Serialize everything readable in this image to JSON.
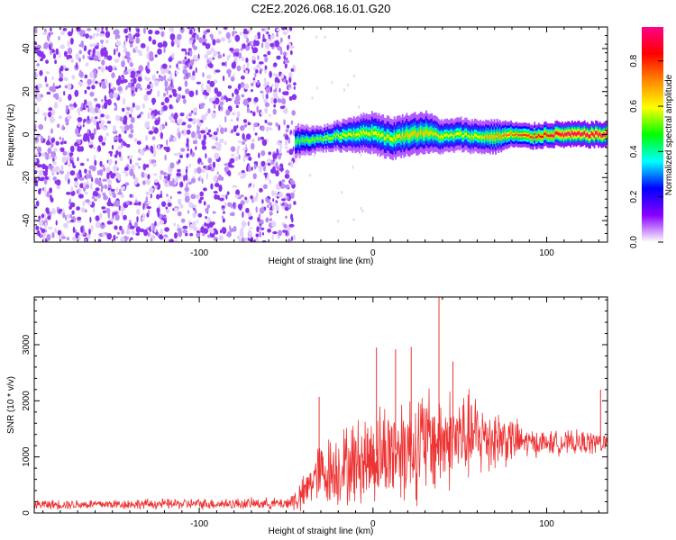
{
  "title": "C2E2.2026.068.16.01.G20",
  "chart_data": [
    {
      "type": "heatmap",
      "title": "C2E2.2026.068.16.01.G20",
      "xlabel": "Height of straight line (km)",
      "ylabel": "Frequency (Hz)",
      "xlim": [
        -195,
        135
      ],
      "ylim": [
        -50,
        50
      ],
      "xticks": [
        -100,
        0,
        100
      ],
      "yticks": [
        -40,
        -20,
        0,
        20,
        40
      ],
      "colorbar": {
        "label": "Normalized spectral amplitude",
        "range": [
          0.0,
          0.95
        ],
        "ticks": [
          0.0,
          0.2,
          0.4,
          0.6,
          0.8
        ],
        "tick_labels": [
          "0.0",
          "0.2",
          "0.4",
          "0.6",
          "0.8"
        ],
        "colors": [
          "#ffffff",
          "#8800ff",
          "#0000ff",
          "#00ffff",
          "#00ff00",
          "#ffff00",
          "#ff8800",
          "#ff0000",
          "#ff0088"
        ]
      },
      "noise_region": {
        "x_range": [
          -195,
          -45
        ],
        "freq_range": [
          -50,
          50
        ],
        "amplitude": 0.1
      },
      "signal_trace": {
        "description": "Narrow band near 0 Hz",
        "x": [
          -45,
          -30,
          -15,
          0,
          10,
          20,
          30,
          40,
          50,
          60,
          70,
          80,
          90,
          100,
          110,
          120,
          135
        ],
        "freq": [
          -3,
          -2,
          0,
          1,
          -2,
          0,
          1,
          -1,
          0,
          -1,
          -1,
          0,
          -1,
          0,
          0,
          0,
          0
        ],
        "half_width": [
          4,
          3,
          4,
          5,
          5,
          5,
          5,
          4,
          4,
          4,
          4,
          3,
          3,
          3,
          3,
          3,
          3
        ],
        "peak_amplitude": [
          0.5,
          0.55,
          0.6,
          0.6,
          0.6,
          0.65,
          0.65,
          0.6,
          0.6,
          0.6,
          0.7,
          0.75,
          0.8,
          0.85,
          0.95,
          0.95,
          0.95
        ]
      }
    },
    {
      "type": "line",
      "xlabel": "Height of straight line (km)",
      "ylabel": "SNR (10 * v/v)",
      "xlim": [
        -195,
        135
      ],
      "ylim": [
        0,
        3850
      ],
      "xticks": [
        -100,
        0,
        100
      ],
      "yticks": [
        0,
        1000,
        2000,
        3000
      ],
      "color": "#ee3333",
      "envelope": {
        "x": [
          -195,
          -50,
          -40,
          -35,
          -30,
          -20,
          -10,
          0,
          10,
          20,
          30,
          40,
          50,
          60,
          70,
          80,
          90,
          100,
          110,
          120,
          135
        ],
        "mean": [
          150,
          170,
          300,
          600,
          700,
          800,
          900,
          1000,
          1100,
          1200,
          1250,
          1300,
          1350,
          1350,
          1350,
          1300,
          1250,
          1250,
          1250,
          1250,
          1250
        ],
        "amp": [
          100,
          120,
          400,
          500,
          700,
          800,
          900,
          1000,
          1100,
          1200,
          1200,
          1100,
          1000,
          900,
          700,
          500,
          300,
          250,
          250,
          250,
          250
        ]
      },
      "spikes": [
        {
          "x": -31,
          "y": 2070
        },
        {
          "x": 2,
          "y": 2950
        },
        {
          "x": 13,
          "y": 2920
        },
        {
          "x": 22,
          "y": 2960
        },
        {
          "x": 38,
          "y": 3850
        },
        {
          "x": 46,
          "y": 2700
        },
        {
          "x": 131,
          "y": 2200
        }
      ]
    }
  ]
}
